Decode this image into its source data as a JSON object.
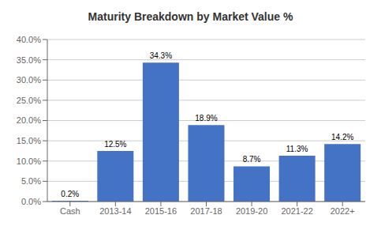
{
  "chart_data": {
    "type": "bar",
    "title": "Maturity Breakdown by Market Value %",
    "categories": [
      "Cash",
      "2013-14",
      "2015-16",
      "2017-18",
      "2019-20",
      "2021-22",
      "2022+"
    ],
    "values": [
      0.2,
      12.5,
      34.3,
      18.9,
      8.7,
      11.3,
      14.2
    ],
    "value_labels": [
      "0.2%",
      "12.5%",
      "34.3%",
      "18.9%",
      "8.7%",
      "11.3%",
      "14.2%"
    ],
    "data_labels": true,
    "color": "#4472C4",
    "ylim": [
      0,
      40
    ],
    "yticks": [
      {
        "value": 0,
        "label": "0.0%"
      },
      {
        "value": 5,
        "label": "5.0%"
      },
      {
        "value": 10,
        "label": "10.0%"
      },
      {
        "value": 15,
        "label": "15.0%"
      },
      {
        "value": 20,
        "label": "20.0%"
      },
      {
        "value": 25,
        "label": "25.0%"
      },
      {
        "value": 30,
        "label": "30.0%"
      },
      {
        "value": 35,
        "label": "35.0%"
      },
      {
        "value": 40,
        "label": "40.0%"
      }
    ],
    "grid": true
  }
}
